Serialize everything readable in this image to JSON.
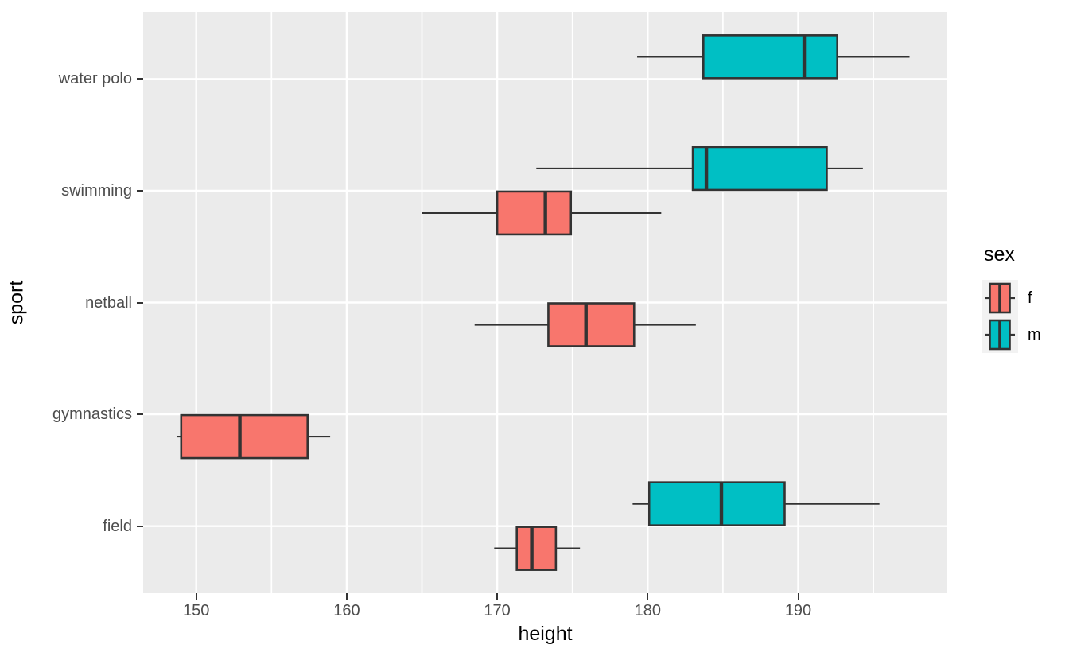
{
  "chart_data": {
    "type": "boxplot",
    "orientation": "horizontal",
    "title": "",
    "xlabel": "height",
    "ylabel": "sport",
    "xlim": [
      146.5,
      199.9
    ],
    "x_major_ticks": [
      150,
      160,
      170,
      180,
      190
    ],
    "x_minor_ticks": [
      155,
      165,
      175,
      185,
      195
    ],
    "grid": "on",
    "categories_bottom_to_top": [
      "field",
      "gymnastics",
      "netball",
      "swimming",
      "water polo"
    ],
    "legend": {
      "title": "sex",
      "position": "right",
      "entries": [
        {
          "label": "f",
          "color": "#F8766D"
        },
        {
          "label": "m",
          "color": "#00BFC4"
        }
      ]
    },
    "series": [
      {
        "sport": "water polo",
        "sex": "m",
        "min": 179.3,
        "q1": 183.7,
        "median": 190.4,
        "q3": 192.6,
        "max": 197.4
      },
      {
        "sport": "swimming",
        "sex": "m",
        "min": 172.6,
        "q1": 183.0,
        "median": 183.9,
        "q3": 191.9,
        "max": 194.3
      },
      {
        "sport": "swimming",
        "sex": "f",
        "min": 165.0,
        "q1": 170.0,
        "median": 173.2,
        "q3": 174.9,
        "max": 180.9
      },
      {
        "sport": "netball",
        "sex": "f",
        "min": 168.5,
        "q1": 173.4,
        "median": 175.9,
        "q3": 179.1,
        "max": 183.2
      },
      {
        "sport": "gymnastics",
        "sex": "f",
        "min": 148.7,
        "q1": 149.0,
        "median": 152.9,
        "q3": 157.4,
        "max": 158.9
      },
      {
        "sport": "field",
        "sex": "m",
        "min": 179.0,
        "q1": 180.1,
        "median": 184.9,
        "q3": 189.1,
        "max": 195.4
      },
      {
        "sport": "field",
        "sex": "f",
        "min": 169.8,
        "q1": 171.3,
        "median": 172.3,
        "q3": 173.9,
        "max": 175.5
      }
    ],
    "colors": {
      "fill_f": "#F8766D",
      "fill_m": "#00BFC4",
      "panel_background": "#EBEBEB",
      "gridline": "#FFFFFF",
      "box_border": "#333333",
      "median_line": "#333333",
      "tick_mark": "#333333",
      "tick_label_text": "#4D4D4D",
      "axis_title_text": "#000000"
    }
  }
}
